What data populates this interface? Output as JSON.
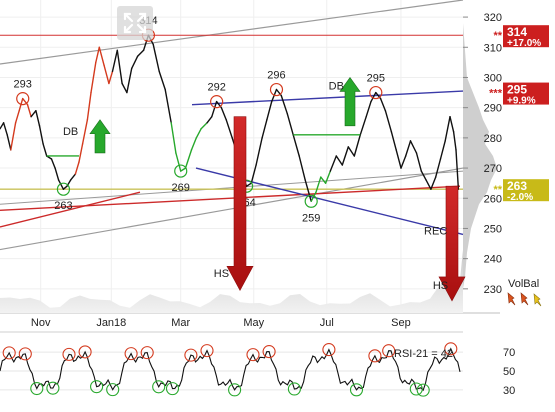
{
  "chart_data": {
    "type": "line",
    "main": {
      "x_labels": [
        "Nov",
        "Jan18",
        "Mar",
        "May",
        "Jul",
        "Sep"
      ],
      "y_ticks": [
        230,
        240,
        250,
        260,
        270,
        280,
        290,
        300,
        310,
        320
      ],
      "ylim": [
        222,
        324
      ],
      "price": [
        [
          "2017-10-01",
          283
        ],
        [
          "2017-10-04",
          285
        ],
        [
          "2017-10-07",
          281
        ],
        [
          "2017-10-10",
          276
        ],
        [
          "2017-10-14",
          285
        ],
        [
          "2017-10-17",
          289
        ],
        [
          "2017-10-20",
          293
        ],
        [
          "2017-10-24",
          291
        ],
        [
          "2017-10-27",
          287
        ],
        [
          "2017-10-31",
          289
        ],
        [
          "2017-11-03",
          284
        ],
        [
          "2017-11-06",
          278
        ],
        [
          "2017-11-09",
          274
        ],
        [
          "2017-11-13",
          273
        ],
        [
          "2017-11-16",
          270
        ],
        [
          "2017-11-19",
          266
        ],
        [
          "2017-11-23",
          263
        ],
        [
          "2017-11-26",
          264
        ],
        [
          "2017-11-29",
          266
        ],
        [
          "2017-12-03",
          268
        ],
        [
          "2017-12-06",
          272
        ],
        [
          "2017-12-09",
          278
        ],
        [
          "2017-12-13",
          286
        ],
        [
          "2017-12-16",
          295
        ],
        [
          "2017-12-20",
          305
        ],
        [
          "2017-12-23",
          310
        ],
        [
          "2017-12-27",
          304
        ],
        [
          "2017-12-31",
          298
        ],
        [
          "2018-01-03",
          302
        ],
        [
          "2018-01-07",
          309
        ],
        [
          "2018-01-11",
          298
        ],
        [
          "2018-01-15",
          295
        ],
        [
          "2018-01-19",
          303
        ],
        [
          "2018-01-24",
          307
        ],
        [
          "2018-01-29",
          309
        ],
        [
          "2018-02-02",
          314
        ],
        [
          "2018-02-06",
          311
        ],
        [
          "2018-02-11",
          302
        ],
        [
          "2018-02-16",
          296
        ],
        [
          "2018-02-21",
          285
        ],
        [
          "2018-02-25",
          275
        ],
        [
          "2018-03-01",
          269
        ],
        [
          "2018-03-05",
          270
        ],
        [
          "2018-03-10",
          276
        ],
        [
          "2018-03-14",
          280
        ],
        [
          "2018-03-18",
          283
        ],
        [
          "2018-03-23",
          285
        ],
        [
          "2018-03-27",
          287
        ],
        [
          "2018-03-31",
          292
        ],
        [
          "2018-04-04",
          290
        ],
        [
          "2018-04-08",
          286
        ],
        [
          "2018-04-13",
          280
        ],
        [
          "2018-04-17",
          275
        ],
        [
          "2018-04-21",
          268
        ],
        [
          "2018-04-25",
          264
        ],
        [
          "2018-04-29",
          265
        ],
        [
          "2018-05-03",
          271
        ],
        [
          "2018-05-08",
          280
        ],
        [
          "2018-05-12",
          286
        ],
        [
          "2018-05-16",
          292
        ],
        [
          "2018-05-20",
          296
        ],
        [
          "2018-05-24",
          294
        ],
        [
          "2018-05-29",
          288
        ],
        [
          "2018-06-03",
          281
        ],
        [
          "2018-06-08",
          274
        ],
        [
          "2018-06-13",
          266
        ],
        [
          "2018-06-18",
          259
        ],
        [
          "2018-06-22",
          262
        ],
        [
          "2018-06-26",
          267
        ],
        [
          "2018-06-30",
          265
        ],
        [
          "2018-07-04",
          269
        ],
        [
          "2018-07-09",
          274
        ],
        [
          "2018-07-14",
          271
        ],
        [
          "2018-07-19",
          277
        ],
        [
          "2018-07-24",
          274
        ],
        [
          "2018-07-29",
          281
        ],
        [
          "2018-08-03",
          287
        ],
        [
          "2018-08-07",
          292
        ],
        [
          "2018-08-11",
          295
        ],
        [
          "2018-08-15",
          293
        ],
        [
          "2018-08-19",
          289
        ],
        [
          "2018-08-24",
          282
        ],
        [
          "2018-08-28",
          276
        ],
        [
          "2018-09-01",
          270
        ],
        [
          "2018-09-05",
          274
        ],
        [
          "2018-09-09",
          279
        ],
        [
          "2018-09-14",
          275
        ],
        [
          "2018-09-18",
          269
        ],
        [
          "2018-09-22",
          266
        ],
        [
          "2018-09-26",
          263
        ],
        [
          "2018-09-30",
          267
        ],
        [
          "2018-10-04",
          273
        ],
        [
          "2018-10-08",
          279
        ],
        [
          "2018-10-12",
          287
        ],
        [
          "2018-10-15",
          282
        ],
        [
          "2018-10-17",
          276
        ],
        [
          "2018-10-19",
          263
        ]
      ],
      "right_labels": [
        {
          "value": 314,
          "text": "314",
          "change": "+17.0%",
          "marker": "**",
          "color": "#cc1f1f"
        },
        {
          "value": 295,
          "text": "295",
          "change": "+9.9%",
          "marker": "***",
          "color": "#cc1f1f"
        },
        {
          "value": 263,
          "text": "263",
          "change": "-2.0%",
          "marker": "**",
          "color": "#c8ba18"
        }
      ],
      "peaks": [
        {
          "date": "2017-10-20",
          "value": 293,
          "label": "293"
        },
        {
          "date": "2018-02-02",
          "value": 314,
          "label": "314"
        },
        {
          "date": "2018-03-31",
          "value": 292,
          "label": "292"
        },
        {
          "date": "2018-05-20",
          "value": 296,
          "label": "296"
        },
        {
          "date": "2018-08-11",
          "value": 295,
          "label": "295"
        }
      ],
      "troughs": [
        {
          "date": "2017-11-23",
          "value": 263,
          "label": "263"
        },
        {
          "date": "2018-03-01",
          "value": 269,
          "label": "269"
        },
        {
          "date": "2018-04-25",
          "value": 264,
          "label": "264"
        },
        {
          "date": "2018-06-18",
          "value": 259,
          "label": "259"
        }
      ],
      "annotations": [
        {
          "text": "DB",
          "date": "2017-11-29",
          "value": 281
        },
        {
          "text": "DB",
          "date": "2018-07-09",
          "value": 296
        },
        {
          "text": "HS",
          "date": "2018-04-04",
          "value": 234
        },
        {
          "text": "HS",
          "date": "2018-10-04",
          "value": 230
        },
        {
          "text": "REC",
          "date": "2018-09-30",
          "value": 248
        }
      ]
    },
    "volume_label": "VolBal",
    "rsi": {
      "label": "RSI-21 = 42",
      "y_ticks": [
        30,
        50,
        70
      ],
      "ylim": [
        15,
        85
      ]
    }
  },
  "ui": {
    "expand_icon": "expand-arrows-icon",
    "volbal_arrows": "trend-arrows-icon"
  }
}
